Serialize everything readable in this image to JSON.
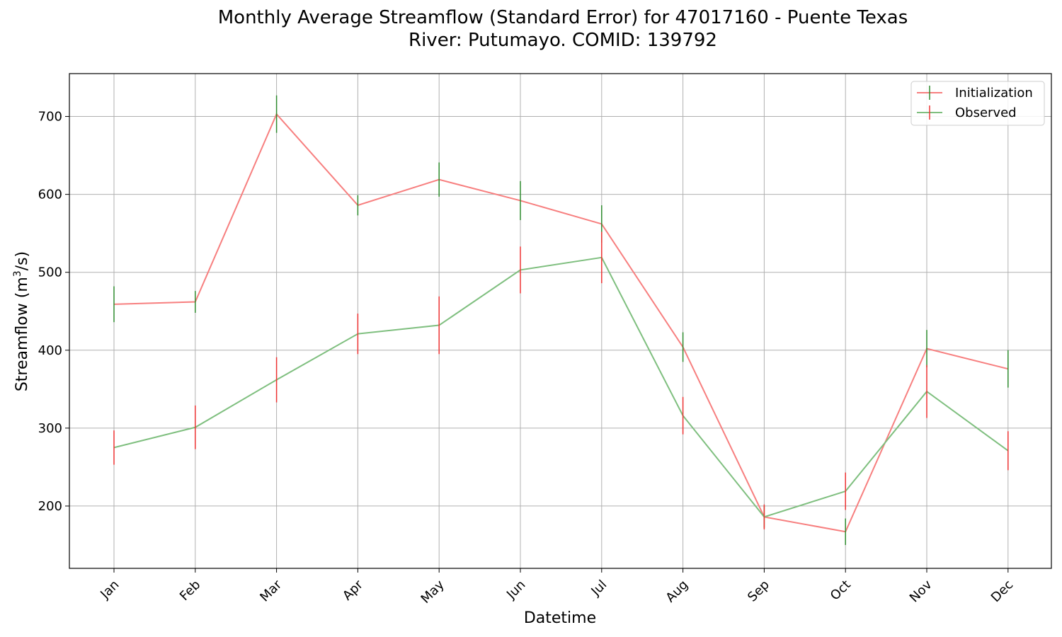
{
  "chart_data": {
    "type": "line",
    "title_line1": "Monthly Average Streamflow (Standard Error) for 47017160 - Puente Texas",
    "title_line2": "River: Putumayo. COMID: 139792",
    "xlabel": "Datetime",
    "ylabel_main": "Streamflow (m",
    "ylabel_sup": "3",
    "ylabel_tail": "/s)",
    "categories": [
      "Jan",
      "Feb",
      "Mar",
      "Apr",
      "May",
      "Jun",
      "Jul",
      "Aug",
      "Sep",
      "Oct",
      "Nov",
      "Dec"
    ],
    "ylim": [
      120,
      755
    ],
    "yticks": [
      200,
      300,
      400,
      500,
      600,
      700
    ],
    "grid": true,
    "legend_position": "top-right",
    "series": [
      {
        "name": "Initialization",
        "color": "#f77f7f",
        "errcolor": "#2e8b2e",
        "values": [
          459,
          462,
          703,
          586,
          619,
          592,
          562,
          404,
          186,
          167,
          402,
          376
        ],
        "errors": [
          23,
          14,
          24,
          13,
          22,
          25,
          24,
          19,
          14,
          17,
          24,
          24
        ]
      },
      {
        "name": "Observed",
        "color": "#7fbf7f",
        "errcolor": "#ee3333",
        "values": [
          275,
          301,
          362,
          421,
          432,
          503,
          519,
          316,
          186,
          219,
          347,
          271
        ],
        "errors": [
          22,
          28,
          29,
          26,
          37,
          30,
          33,
          24,
          16,
          24,
          34,
          25
        ]
      }
    ]
  }
}
